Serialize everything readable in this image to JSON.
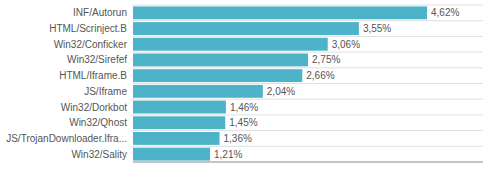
{
  "chart_data": {
    "type": "bar",
    "orientation": "horizontal",
    "categories": [
      "Win32/Sality",
      "JS/TrojanDownloader.Ifra...",
      "Win32/Qhost",
      "Win32/Dorkbot",
      "JS/Iframe",
      "HTML/Iframe.B",
      "Win32/Sirefef",
      "Win32/Conficker",
      "HTML/Scrinject.B",
      "INF/Autorun"
    ],
    "values": [
      1.21,
      1.36,
      1.45,
      1.46,
      2.04,
      2.66,
      2.75,
      3.06,
      3.55,
      4.62
    ],
    "value_labels": [
      "1,21%",
      "1,36%",
      "1,45%",
      "1,46%",
      "2,04%",
      "2,66%",
      "2,75%",
      "3,06%",
      "3,55%",
      "4,62%"
    ],
    "color": "#4db3c8",
    "xlim": [
      0,
      5.5
    ],
    "grid": true,
    "data_labels": true,
    "tick_labels": "y"
  }
}
